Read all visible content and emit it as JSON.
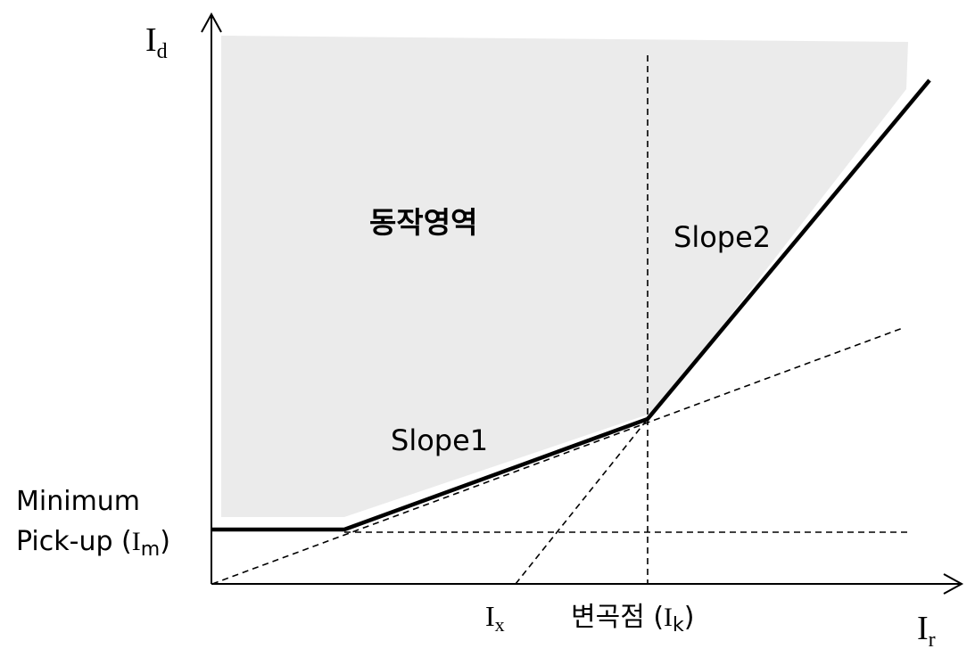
{
  "diagram": {
    "operating_region_label": "동작영역",
    "slope1_label": "Slope1",
    "slope2_label": "Slope2",
    "min_pickup_line1": "Minimum",
    "min_pickup_line2_prefix": "Pick-up (",
    "min_pickup_symbol": "I",
    "min_pickup_subscript": "m",
    "min_pickup_close": ")",
    "y_axis_symbol": "I",
    "y_axis_subscript": "d",
    "x_axis_symbol": "I",
    "x_axis_subscript": "r",
    "ix_symbol": "I",
    "ix_subscript": "x",
    "knee_prefix": "변곡점 (",
    "knee_symbol": "I",
    "knee_subscript": "k",
    "knee_close": ")",
    "colors": {
      "region_fill": "#ebebeb",
      "characteristic_line": "#000000",
      "dashed_guides": "#000000"
    }
  }
}
